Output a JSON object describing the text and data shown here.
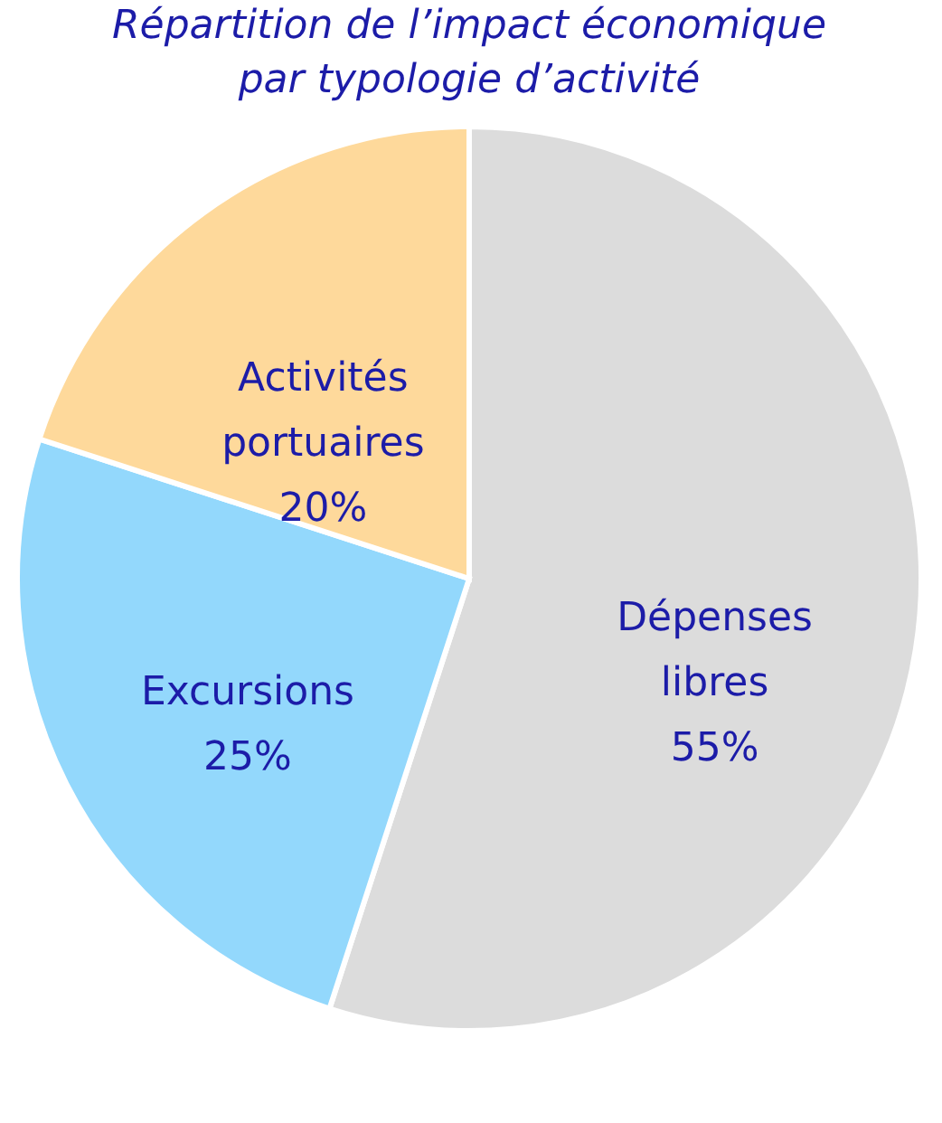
{
  "chart_data": {
    "type": "pie",
    "title": "Répartition de l’impact économique par typologie d’activité",
    "categories": [
      "Dépenses libres",
      "Excursions",
      "Activités portuaires"
    ],
    "values": [
      55,
      25,
      20
    ],
    "value_labels": [
      "55%",
      "25%",
      "20%"
    ],
    "colors": [
      "#dcdcdc",
      "#93d8fc",
      "#fed99b"
    ],
    "legend": false
  }
}
